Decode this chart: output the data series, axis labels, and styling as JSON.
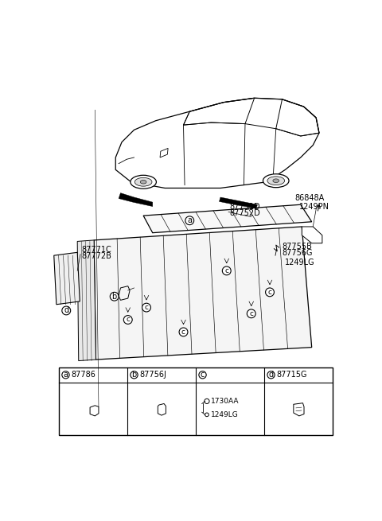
{
  "bg_color": "#ffffff",
  "line_color": "#000000",
  "part_labels": {
    "a_code": "87786",
    "b_code": "87756J",
    "c_code_1": "1730AA",
    "c_code_2": "1249LG",
    "d_code": "87715G"
  },
  "callout_labels": {
    "top_right_1": "87751D",
    "top_right_2": "87752D",
    "far_right_1": "86848A",
    "far_right_2": "1249PN",
    "right_1": "87755B",
    "right_2": "87756G",
    "right_3": "1249LG",
    "left_1": "87771C",
    "left_2": "87772B"
  }
}
